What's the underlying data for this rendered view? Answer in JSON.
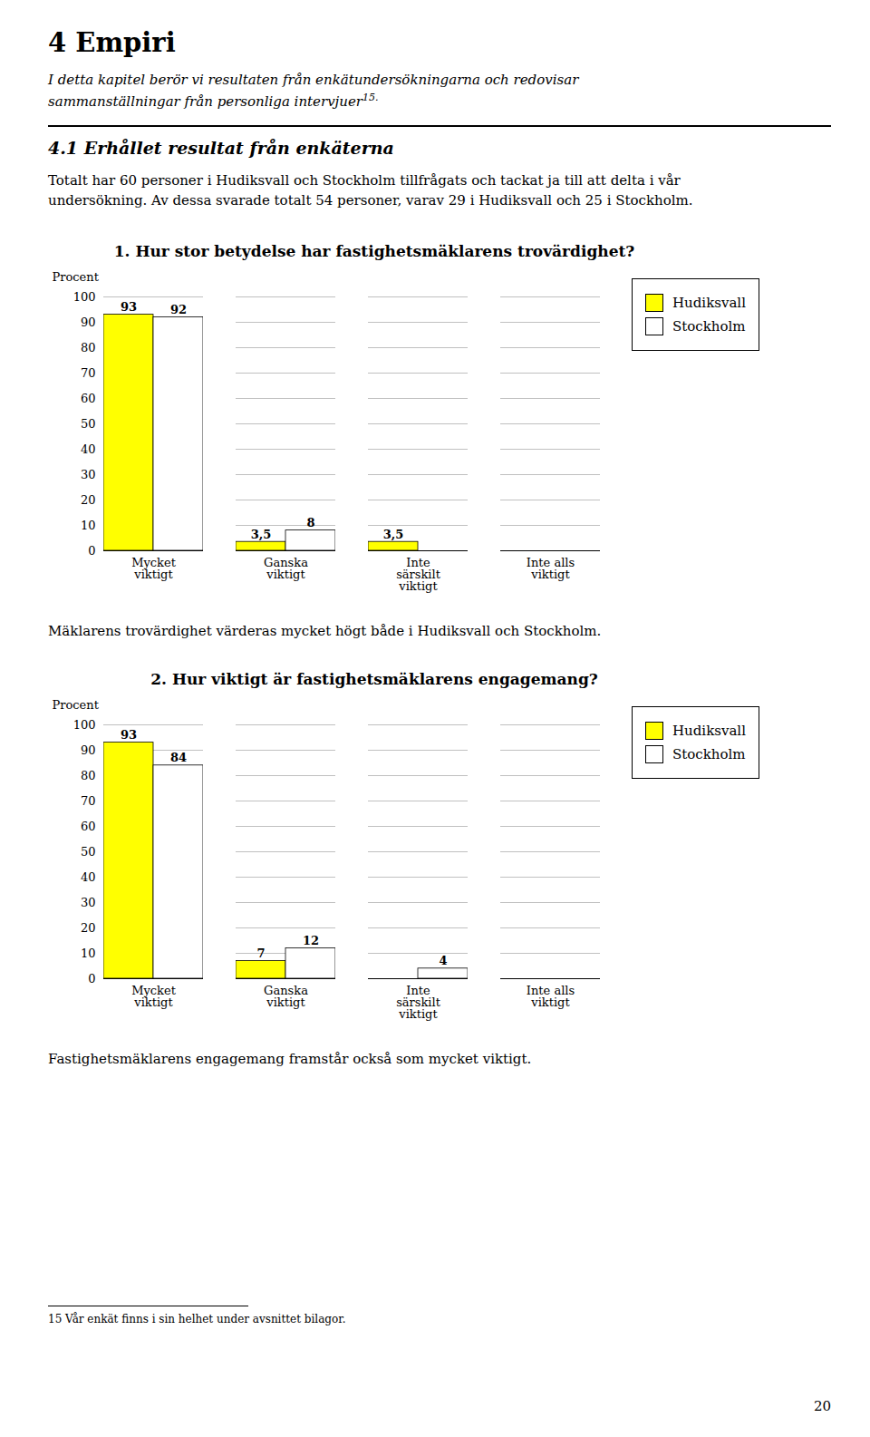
{
  "title": "4  Empiri",
  "subtitle": [
    "I detta kapitel berör vi resultaten från enkätundersökningarna och redovisar",
    "sammanställningar från personliga intervjuer"
  ],
  "annotations": [
    "15.",
    "4.1  Erhållet resultat från enkäterna",
    "Totalt har 60 personer i Hudiksvall och Stockholm tillfrågats och tackat ja till att delta i vår",
    "undersökning. Av dessa svarade totalt 54 personer, varav 29 i Hudiksvall och 25 i Stockholm.",
    "15 Vår enkät finns i sin helhet under avsnittet bilagor.",
    "20"
  ],
  "chart_data": [
    {
      "type": "bar",
      "title": "1. Hur stor betydelse har fastighetsmäklarens trovärdighet?",
      "categories": [
        "Mycket\nviktigt",
        "Ganska\nviktigt",
        "Inte\nsärskilt\nviktigt",
        "Inte alls\nviktigt"
      ],
      "series": [
        {
          "name": "Hudiksvall",
          "color": "#ffff00",
          "values": [
            93,
            3.5,
            3.5,
            0
          ],
          "value_labels": [
            "93",
            "3,5",
            "3,5",
            null
          ]
        },
        {
          "name": "Stockholm",
          "color": "#ffffff",
          "values": [
            92,
            8,
            0,
            0
          ],
          "value_labels": [
            "92",
            "8",
            null,
            null
          ]
        }
      ],
      "ylabel": "Procent",
      "ylim": [
        0,
        100
      ],
      "yticks": [
        0,
        10,
        20,
        30,
        40,
        50,
        60,
        70,
        80,
        90,
        100
      ],
      "grid": true,
      "legend": "right",
      "data_labels": true,
      "annotations": [
        "Mäklarens trovärdighet värderas mycket högt både i Hudiksvall och Stockholm."
      ]
    },
    {
      "type": "bar",
      "title": "2. Hur viktigt är fastighetsmäklarens engagemang?",
      "categories": [
        "Mycket\nviktigt",
        "Ganska\nviktigt",
        "Inte\nsärskilt\nviktigt",
        "Inte alls\nviktigt"
      ],
      "series": [
        {
          "name": "Hudiksvall",
          "color": "#ffff00",
          "values": [
            93,
            7,
            0,
            0
          ],
          "value_labels": [
            "93",
            "7",
            null,
            null
          ]
        },
        {
          "name": "Stockholm",
          "color": "#ffffff",
          "values": [
            84,
            12,
            4,
            0
          ],
          "value_labels": [
            "84",
            "12",
            "4",
            null
          ]
        }
      ],
      "ylabel": "Procent",
      "ylim": [
        0,
        100
      ],
      "yticks": [
        0,
        10,
        20,
        30,
        40,
        50,
        60,
        70,
        80,
        90,
        100
      ],
      "grid": true,
      "legend": "right",
      "data_labels": true,
      "annotations": [
        "Fastighetsmäklarens engagemang framstår också som mycket viktigt."
      ]
    }
  ]
}
